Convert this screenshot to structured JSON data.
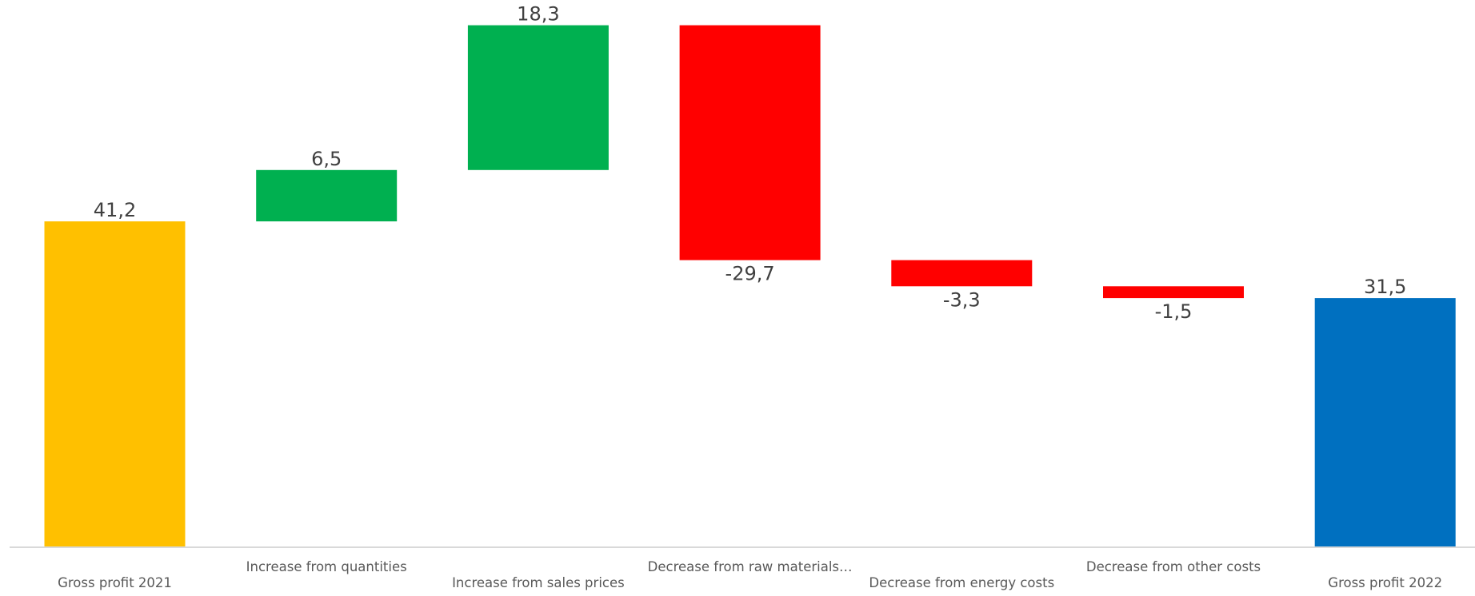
{
  "chart_data": {
    "type": "bar",
    "subtype": "waterfall",
    "title": "",
    "xlabel": "",
    "ylabel": "",
    "ylim": [
      0,
      51.5
    ],
    "grid": false,
    "legend": "none",
    "categories": [
      "Gross profit 2021",
      "Increase from quantities",
      "Increase from sales prices",
      "Decrease from raw materials…",
      "Decrease from energy costs",
      "Decrease from other costs",
      "Gross profit 2022"
    ],
    "values": [
      41.2,
      6.5,
      18.3,
      -29.7,
      -3.3,
      -1.5,
      31.5
    ],
    "value_labels": [
      "41,2",
      "6,5",
      "18,3",
      "-29,7",
      "-3,3",
      "-1,5",
      "31,5"
    ],
    "bar_kinds": [
      "total",
      "increase",
      "increase",
      "decrease",
      "decrease",
      "decrease",
      "total"
    ],
    "colors": {
      "start_total": "#FFC000",
      "increase": "#00B050",
      "decrease": "#FF0000",
      "end_total": "#0070C0",
      "axis": "#D9D9D9",
      "value_text": "#404040",
      "category_text": "#595959"
    }
  }
}
